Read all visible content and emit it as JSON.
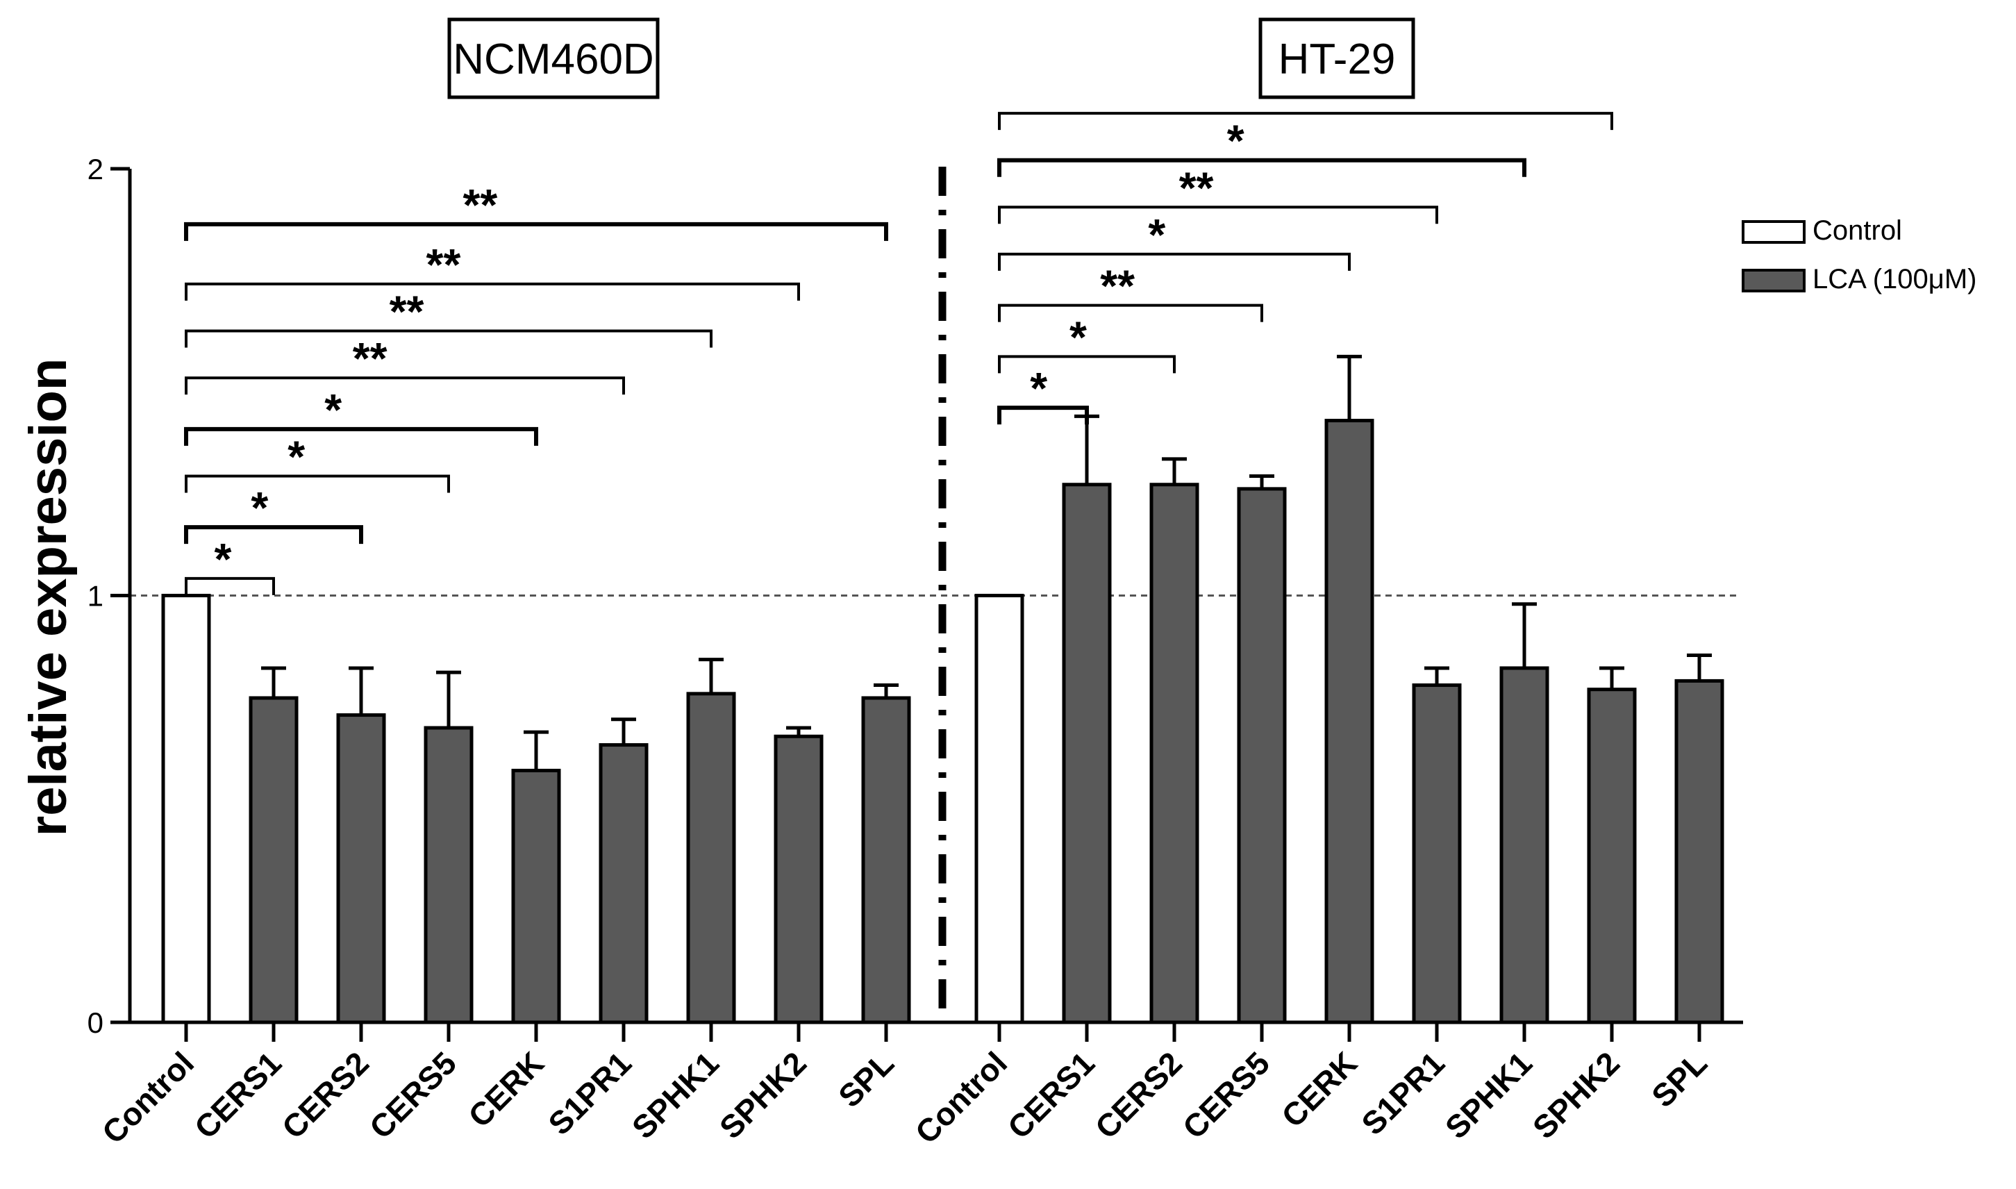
{
  "chart_data": {
    "type": "bar",
    "ylabel": "relative expression",
    "ylim": [
      0,
      2
    ],
    "yticks": [
      "0",
      "1",
      "2"
    ],
    "reference_line": 1,
    "colors": {
      "control": "#ffffff",
      "lca": "#595959",
      "stroke": "#000000"
    },
    "legend": {
      "position": "top-right",
      "entries": [
        {
          "label": "Control",
          "color": "#ffffff"
        },
        {
          "label": "LCA (100μM)",
          "color": "#595959"
        }
      ]
    },
    "panels": [
      {
        "title": "NCM460D",
        "categories": [
          "Control",
          "CERS1",
          "CERS2",
          "CERS5",
          "CERK",
          "S1PR1",
          "SPHK1",
          "SPHK2",
          "SPL"
        ],
        "series": [
          "control",
          "lca",
          "lca",
          "lca",
          "lca",
          "lca",
          "lca",
          "lca",
          "lca"
        ],
        "values": [
          1.0,
          0.76,
          0.72,
          0.69,
          0.59,
          0.65,
          0.77,
          0.67,
          0.76
        ],
        "errors": [
          0.0,
          0.07,
          0.11,
          0.13,
          0.09,
          0.06,
          0.08,
          0.02,
          0.03
        ],
        "comparisons": [
          {
            "to": 1,
            "label": "*",
            "level": 1.04
          },
          {
            "to": 2,
            "label": "*",
            "level": 1.16
          },
          {
            "to": 3,
            "label": "*",
            "level": 1.28
          },
          {
            "to": 4,
            "label": "*",
            "level": 1.39
          },
          {
            "to": 5,
            "label": "**",
            "level": 1.51
          },
          {
            "to": 6,
            "label": "**",
            "level": 1.62
          },
          {
            "to": 7,
            "label": "**",
            "level": 1.73
          },
          {
            "to": 8,
            "label": "**",
            "level": 1.87
          }
        ]
      },
      {
        "title": "HT-29",
        "categories": [
          "Control",
          "CERS1",
          "CERS2",
          "CERS5",
          "CERK",
          "S1PR1",
          "SPHK1",
          "SPHK2",
          "SPL"
        ],
        "series": [
          "control",
          "lca",
          "lca",
          "lca",
          "lca",
          "lca",
          "lca",
          "lca",
          "lca"
        ],
        "values": [
          1.0,
          1.26,
          1.26,
          1.25,
          1.41,
          0.79,
          0.83,
          0.78,
          0.8
        ],
        "errors": [
          0.0,
          0.16,
          0.06,
          0.03,
          0.15,
          0.04,
          0.15,
          0.05,
          0.06
        ],
        "comparisons": [
          {
            "to": 1,
            "label": "*",
            "level": 1.44
          },
          {
            "to": 2,
            "label": "*",
            "level": 1.56
          },
          {
            "to": 3,
            "label": "**",
            "level": 1.68
          },
          {
            "to": 4,
            "label": "*",
            "level": 1.8
          },
          {
            "to": 5,
            "label": "**",
            "level": 1.91
          },
          {
            "to": 6,
            "label": "*",
            "level": 2.02
          },
          {
            "to": 7,
            "label": "*",
            "level": 2.13
          }
        ]
      }
    ]
  }
}
